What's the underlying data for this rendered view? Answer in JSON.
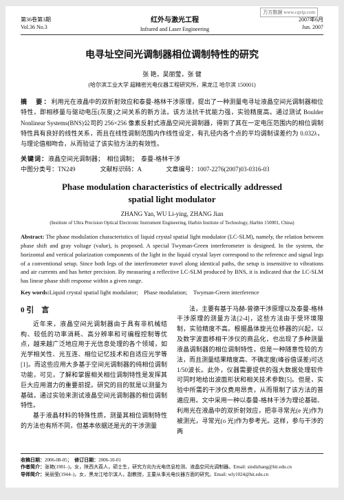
{
  "watermark": "万方数据 www.cqvip.com",
  "header": {
    "left_line1": "第36卷第3期",
    "left_line2": "Vol.36 No.3",
    "center_cn": "红外与激光工程",
    "center_en": "Infrared and Laser Engineering",
    "right_line1": "2007年6月",
    "right_line2": "Jun. 2007"
  },
  "title_cn": "电寻址空间光调制器相位调制特性的研究",
  "authors_cn": "张 艳，吴丽莹，张 健",
  "affiliation_cn": "(哈尔滨工业大学 超精密光电仪器工程研究所，黑龙江 哈尔滨 150001)",
  "abstract_cn_label": "摘　要：",
  "abstract_cn": "利用光在液晶中的双折射效应和泰曼-格林干涉原理，提出了一种测量电寻址液晶空间光调制器相位特性，即相移量与驱动电压(灰度)之间关系的新方法。该方法抗干扰能力强，实验精度高。通过测试 Boulder Nonlinear Systems(BNS)公司的 256×256 像素反射式液晶空间光调制器，得到了其在一定电压范围内的相位调制特性具有良好的线性关系，而且在线性调制范围内作线性设定，有孔径内各个点的平均调制误差约为 0.032λ，与理论值相吻合，从而验证了该实验方法的有效性。",
  "keywords_cn_label": "关键词：",
  "keywords_cn": "液晶空间光调制器；　相位调制；　泰曼-格林干涉",
  "class_line": "中图分类号：TN249　　　　文献标识码：A　　　　文章编号：1007-2276(2007)03-0316-03",
  "title_en_l1": "Phase modulation characteristics of electrically addressed",
  "title_en_l2": "spatial light modulator",
  "authors_en": "ZHANG Yan, WU Li-ying, ZHANG Jian",
  "affiliation_en": "(Institute of Ultra Precision Optical Electronic Instrument Engineering, Harbin Institute of Technology, Harbin 150001, China)",
  "abstract_en_label": "Abstract:",
  "abstract_en": " The phase modulation characteristics of liquid crystal spatial light modulator (LC-SLM), namely, the relation between phase shift and gray voltage (value), is proposed. A special Twyman-Green interferometer is designed. In the system, the horizontal and vertical polarization components of the light in the liquid crystal layer correspond to the reference and signal legs of a conventional setup. Since both legs of the interferometer travel along identical paths, the setup is insensitive to vibrations and air currents and has better precision. By measuring a reflective LC-SLM produced by BNS, it is indicated that the LC-SLM has linear phase shift response within a given range.",
  "keywords_en_label": "Key words:",
  "keywords_en": "Liquid crystal spatial light modulator;　Phase modulation;　Twyman-Green interference",
  "section0": "0 引　言",
  "col_left_p1": "近年来，液晶空间光调制器由于具有非机械结构、较低的功率消耗、高分辨率和可编程控制等优点，越来越广泛地应用于光信息处理的各个领域，如光学相关性、光互连、相位记忆技术和自适应光学等[1]。而这些应用大多基于空间光调制器的纯相位调制功能，可见，了解和掌握相关相位调制特性是发挥其巨大应用潜力的重要前提。研究的目的就是以测量为基础，通过实验来测试液晶空间光调制器的相位调制特性。",
  "col_left_p2": "基于液晶材料的特殊性质，测量其相位调制特性的方法也有所不同，但基本依据还是光的干涉测量",
  "col_right_p1": "法，主要有基于马赫-曾德干涉原理以及泰曼-格林干涉原理的测量方法[2-4]，这些方法由于受环境限制，实验精度不高。根据晶体旋光位移器的兴起，以及数字波面移相干涉仪的商品化，也出现了多种测量液晶调制器的相位调制特性，但是一种随意性较的方法，而且测量结果精度高、不确定度(峰谷值误差)可达1/50波长。此外，仪器需要提供的强大数据处理软件可同时地给出波面形状和相关技术参数[5]。但是，实验中所需的干涉仪费用昂贵，从而限制了该方法的普遍应用。文中采用一种以泰曼-格林干涉为理论基础、利用光在液晶中的双折射效应，把非寻常光(e 光)作为被测光，寻常光(o 光)作为参考光。这样，参与干涉的两",
  "footer": {
    "recv_label": "收稿日期：",
    "recv": "2006-08-05；　",
    "rev_label": "修订日期：",
    "rev": "2006-10-01",
    "bio1_label": "作者简介：",
    "bio1": "张艳(1981–)，女，陕西大荔人，硕士生，研究方向为光电信息检测、液晶空间光调制器。Email: sindizhang@hit.edu.cn",
    "bio2_label": "导师简介：",
    "bio2": "吴丽莹(1944–)，女，黑龙江哈尔滨人，副教授，主要从事光电仪器方面的研究。Email: wly1024@hit.edu.cn"
  }
}
